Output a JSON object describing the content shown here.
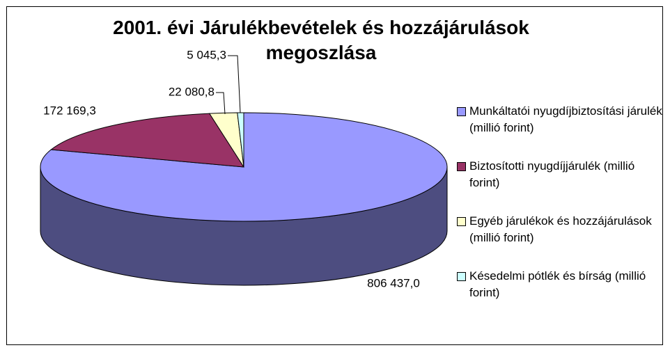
{
  "chart_data": {
    "type": "pie",
    "title": "2001. évi Járulékbevételek és hozzájárulások megoszlása",
    "categories": [
      "Munkáltatói nyugdíjbiztosítási járulék (millió forint)",
      "Biztosítotti nyugdíjjárulék (millió forint)",
      "Egyéb járulékok és hozzájárulások (millió forint)",
      "Késedelmi pótlék és bírság (millió forint)"
    ],
    "values": [
      806437.0,
      172169.3,
      22080.8,
      5045.3
    ],
    "value_labels": [
      "806 437,0",
      "172 169,3",
      "22 080,8",
      "5 045,3"
    ],
    "colors": [
      "#9999ff",
      "#993366",
      "#ffffcc",
      "#ccffff"
    ],
    "legend": "right"
  }
}
